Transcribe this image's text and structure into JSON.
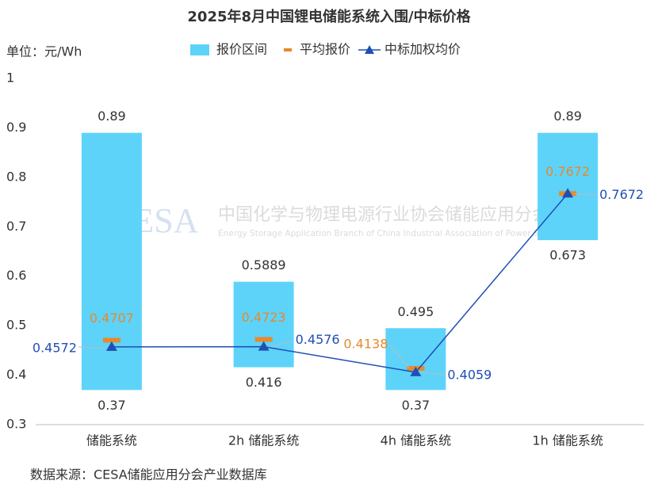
{
  "chart_data": {
    "type": "range",
    "title": "2025年8月中国锂电储能系统入围/中标价格",
    "y_label": "单位：元/Wh",
    "source": "数据来源：CESA储能应用分会产业数据库",
    "watermark": [
      "CESA",
      "中国化学与物理电源行业协会储能应用分会",
      "Energy Storage Application Branch of China Industrial Association of Power Sources"
    ],
    "categories": [
      "储能系统",
      "2h 储能系统",
      "4h 储能系统",
      "1h 储能系统"
    ],
    "ylim": [
      0.3,
      1
    ],
    "yticks": [
      0.3,
      0.4,
      0.5,
      0.6,
      0.7,
      0.8,
      0.9,
      1
    ],
    "series": [
      {
        "name": "报价区间",
        "type": "range",
        "color": "#5dd3fa",
        "low": [
          0.37,
          0.416,
          0.37,
          0.673
        ],
        "high": [
          0.89,
          0.5889,
          0.495,
          0.89
        ]
      },
      {
        "name": "平均报价",
        "type": "marker",
        "color": "#e8892a",
        "values": [
          0.4707,
          0.4723,
          0.4138,
          0.7672
        ]
      },
      {
        "name": "中标加权均价",
        "type": "line",
        "color": "#1f4fb5",
        "values": [
          0.4572,
          0.4576,
          0.4059,
          0.7672
        ]
      }
    ]
  }
}
